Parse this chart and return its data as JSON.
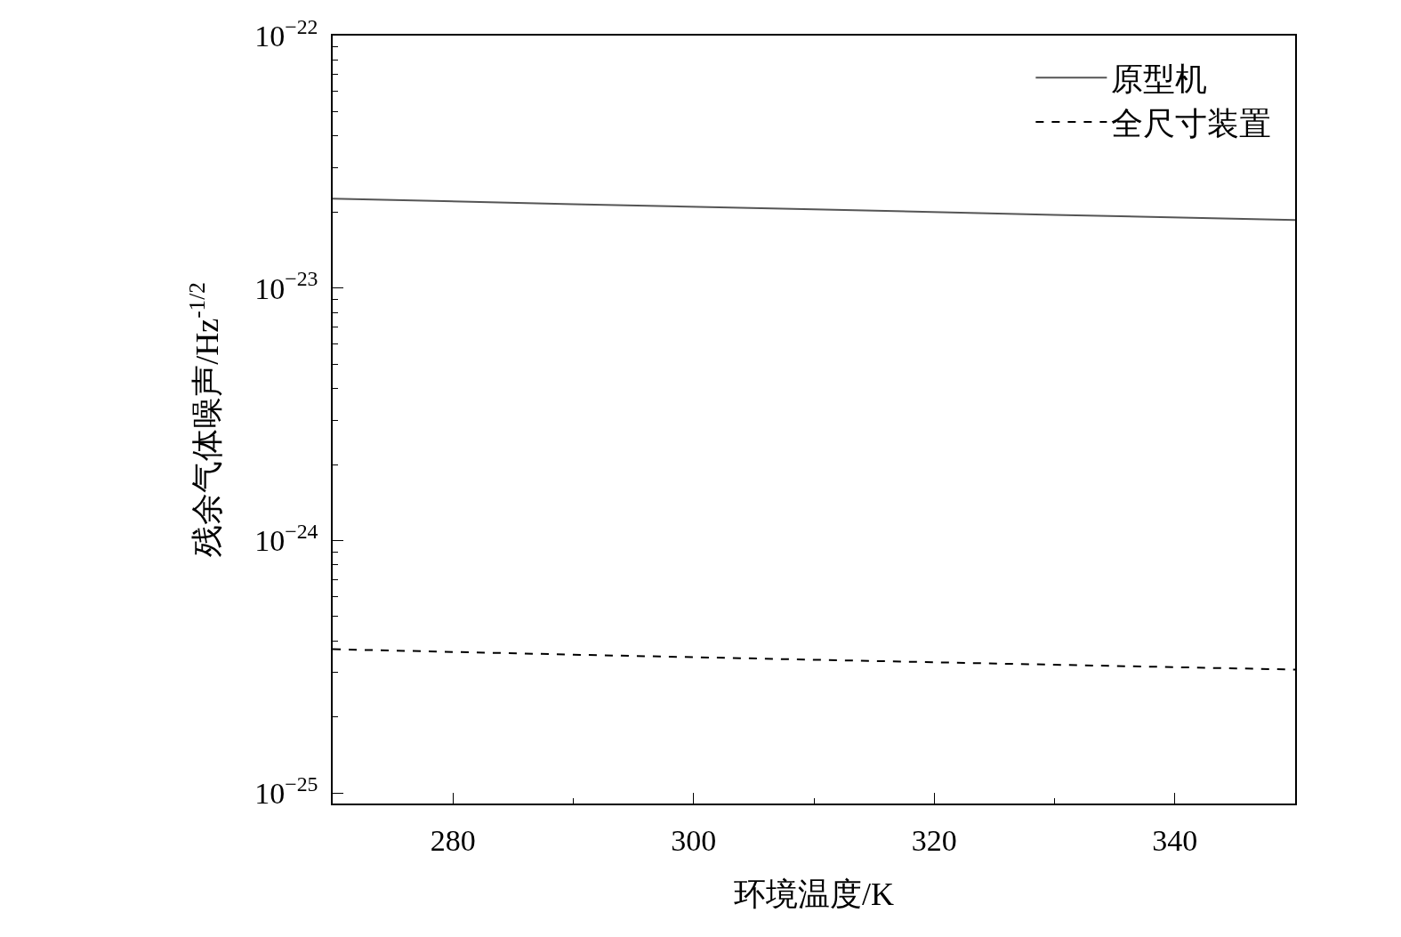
{
  "chart_data": {
    "type": "line",
    "xlabel": "环境温度/K",
    "ylabel": "残余气体噪声/Hz$^{-1/2}$",
    "log": "y",
    "legend": "top right",
    "x": [
      270,
      290,
      310,
      330,
      350
    ],
    "series": [
      {
        "name": "原型机",
        "color": "#555555",
        "line_style": "solid",
        "values": [
          2.26e-23,
          2.15e-23,
          2.05e-23,
          1.95e-23,
          1.86e-23
        ]
      },
      {
        "name": "全尺寸装置",
        "color": "#000000",
        "line_style": "dashed",
        "values": [
          3.71e-25,
          3.53e-25,
          3.37e-25,
          3.22e-25,
          3.08e-25
        ]
      }
    ],
    "xlim": [
      270,
      350
    ],
    "xticks": [
      {
        "value": 280,
        "label": "280"
      },
      {
        "value": 290,
        "label": null
      },
      {
        "value": 300,
        "label": "300"
      },
      {
        "value": 310,
        "label": null
      },
      {
        "value": 320,
        "label": "320"
      },
      {
        "value": 330,
        "label": null
      },
      {
        "value": 340,
        "label": "340"
      }
    ],
    "ylim": [
      9.08e-26,
      1e-22
    ],
    "yticks": [
      {
        "value": 1e-25,
        "label": "10$^{−25}$"
      },
      {
        "value": 2e-25,
        "label": null
      },
      {
        "value": 3e-25,
        "label": null
      },
      {
        "value": 4e-25,
        "label": null
      },
      {
        "value": 5e-25,
        "label": null
      },
      {
        "value": 6e-25,
        "label": null
      },
      {
        "value": 7e-25,
        "label": null
      },
      {
        "value": 8e-25,
        "label": null
      },
      {
        "value": 9e-25,
        "label": null
      },
      {
        "value": 1e-24,
        "label": "10$^{−24}$"
      },
      {
        "value": 2e-24,
        "label": null
      },
      {
        "value": 3e-24,
        "label": null
      },
      {
        "value": 4e-24,
        "label": null
      },
      {
        "value": 5e-24,
        "label": null
      },
      {
        "value": 6e-24,
        "label": null
      },
      {
        "value": 7e-24,
        "label": null
      },
      {
        "value": 8e-24,
        "label": null
      },
      {
        "value": 9e-24,
        "label": null
      },
      {
        "value": 1e-23,
        "label": "10$^{−23}$"
      },
      {
        "value": 2e-23,
        "label": null
      },
      {
        "value": 3e-23,
        "label": null
      },
      {
        "value": 4e-23,
        "label": null
      },
      {
        "value": 5e-23,
        "label": null
      },
      {
        "value": 6e-23,
        "label": null
      },
      {
        "value": 7e-23,
        "label": null
      },
      {
        "value": 8e-23,
        "label": null
      },
      {
        "value": 9e-23,
        "label": null
      },
      {
        "value": 1e-22,
        "label": "10$^{−22}$"
      }
    ]
  }
}
